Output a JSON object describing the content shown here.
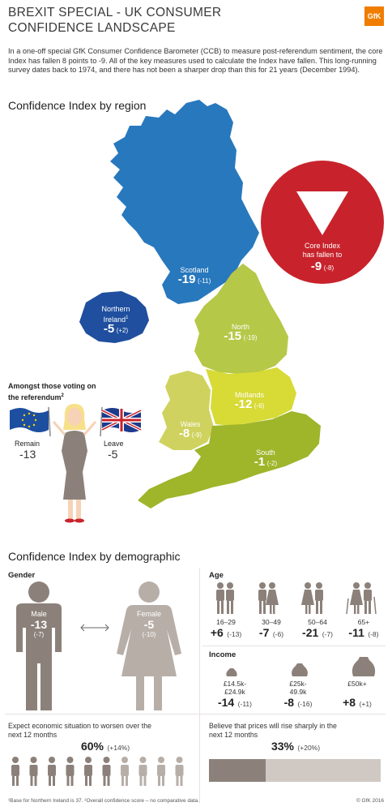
{
  "header": {
    "title_line1": "BREXIT SPECIAL - UK CONSUMER",
    "title_line2": "CONFIDENCE LANDSCAPE",
    "logo": "GfK"
  },
  "intro": "In a one-off special GfK Consumer Confidence Barometer (CCB) to measure post-referendum sentiment, the core Index has fallen 8 points to -9. All of the key measures used to calculate the Index have fallen. This long-running survey dates back to 1974, and there has not been a sharper drop than this for 21 years (December 1994).",
  "region_section": {
    "heading": "Confidence Index by region",
    "regions": {
      "scotland": {
        "name": "Scotland",
        "value": "-19",
        "change": "(-11)",
        "color": "#2878bd"
      },
      "northern_ireland": {
        "name_line1": "Northern",
        "name_line2": "Ireland",
        "footnote_mark": "1",
        "value": "-5",
        "change": "(+2)",
        "color": "#1f4f9e"
      },
      "north": {
        "name": "North",
        "value": "-15",
        "change": "(-19)",
        "color": "#b6c848"
      },
      "midlands": {
        "name": "Midlands",
        "value": "-12",
        "change": "(-6)",
        "color": "#d8da36"
      },
      "wales": {
        "name": "Wales",
        "value": "-8",
        "change": "(-9)",
        "color": "#cfd25e"
      },
      "south": {
        "name": "South",
        "value": "-1",
        "change": "(-2)",
        "color": "#9fb52a"
      }
    },
    "core_index": {
      "label_line1": "Core Index",
      "label_line2": "has fallen to",
      "value": "-9",
      "change": "(-8)",
      "color": "#c8232c"
    },
    "referendum": {
      "heading_line1": "Amongst those voting on",
      "heading_line2": "the referendum",
      "footnote_mark": "2",
      "remain_label": "Remain",
      "remain_value": "-13",
      "leave_label": "Leave",
      "leave_value": "-5"
    }
  },
  "demographic_section": {
    "heading": "Confidence Index by demographic",
    "gender": {
      "label": "Gender",
      "male": {
        "label": "Male",
        "value": "-13",
        "change": "(-7)"
      },
      "female": {
        "label": "Female",
        "value": "-5",
        "change": "(-10)"
      }
    },
    "age": {
      "label": "Age",
      "groups": [
        {
          "range": "16–29",
          "value": "+6",
          "change": "(-13)"
        },
        {
          "range": "30–49",
          "value": "-7",
          "change": "(-6)"
        },
        {
          "range": "50–64",
          "value": "-21",
          "change": "(-7)"
        },
        {
          "range": "65+",
          "value": "-11",
          "change": "(-8)"
        }
      ]
    },
    "income": {
      "label": "Income",
      "groups": [
        {
          "range_line1": "£14.5k-",
          "range_line2": "£24.9k",
          "value": "-14",
          "change": "(-11)"
        },
        {
          "range_line1": "£25k-",
          "range_line2": "49.9k",
          "value": "-8",
          "change": "(-16)"
        },
        {
          "range_line1": "£50k+",
          "range_line2": "",
          "value": "+8",
          "change": "(+1)"
        }
      ]
    },
    "economy": {
      "text_line1": "Expect economic situation to worsen over the",
      "text_line2": "next 12 months",
      "value": "60%",
      "change": "(+14%)",
      "share": 0.6
    },
    "prices": {
      "text_line1": "Believe that prices will rise sharply in the",
      "text_line2": "next 12 months",
      "value": "33%",
      "change": "(+20%)",
      "share": 0.33
    }
  },
  "footer": {
    "note": "¹Base for Northern Ireland is 37. ²Overall confidence score – no comparative data.",
    "copyright": "© GfK 2016"
  },
  "colors": {
    "figure_dark": "#8c817a",
    "figure_light": "#b7aea8",
    "bar_light": "#cfc8c3"
  }
}
